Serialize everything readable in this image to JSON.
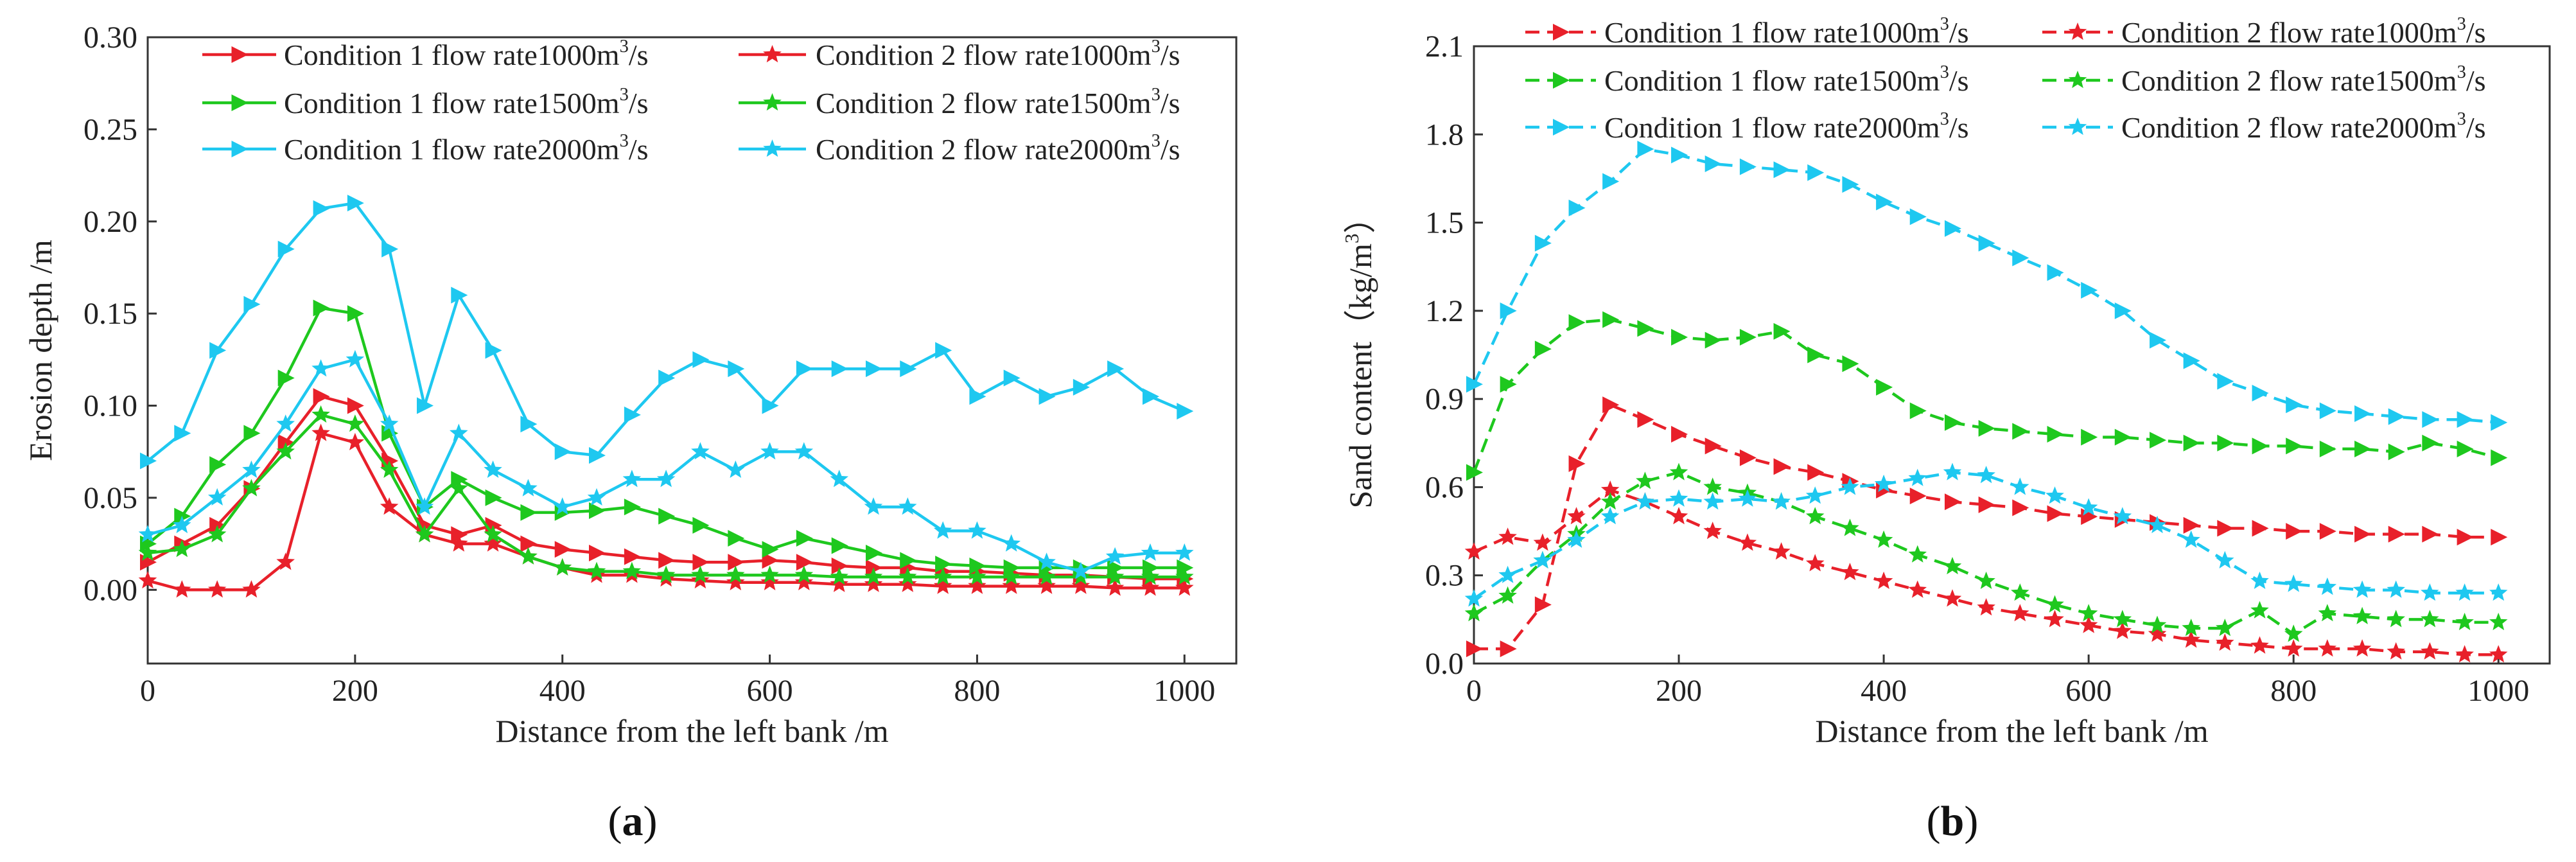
{
  "chart_data": [
    {
      "panel_label": "a",
      "type": "line",
      "xlabel": "Distance from the left bank /m",
      "ylabel": "Erosion depth /m",
      "xlim": [
        0,
        1050
      ],
      "ylim": [
        -0.04,
        0.3
      ],
      "xticks": [
        0,
        200,
        400,
        600,
        800,
        1000
      ],
      "yticks": [
        0.0,
        0.05,
        0.1,
        0.15,
        0.2,
        0.25,
        0.3
      ],
      "ytick_labels": [
        "0.00",
        "0.05",
        "0.10",
        "0.15",
        "0.20",
        "0.25",
        "0.30"
      ],
      "x": [
        0,
        33,
        67,
        100,
        133,
        167,
        200,
        233,
        267,
        300,
        333,
        367,
        400,
        433,
        467,
        500,
        533,
        567,
        600,
        633,
        667,
        700,
        733,
        767,
        800,
        833,
        867,
        900,
        933,
        967,
        1000
      ],
      "series": [
        {
          "name_prefix": "Condition 1 flow rate1000m",
          "name_sup": "3",
          "name_suffix": "/s",
          "color": "#e8202a",
          "marker": "triangle",
          "values": [
            0.015,
            0.025,
            0.035,
            0.055,
            0.08,
            0.105,
            0.1,
            0.07,
            0.035,
            0.03,
            0.035,
            0.025,
            0.022,
            0.02,
            0.018,
            0.016,
            0.015,
            0.015,
            0.016,
            0.015,
            0.013,
            0.012,
            0.012,
            0.01,
            0.01,
            0.009,
            0.008,
            0.008,
            0.007,
            0.006,
            0.006
          ]
        },
        {
          "name_prefix": "Condition 2 flow rate1000m",
          "name_sup": "3",
          "name_suffix": "/s",
          "color": "#e8202a",
          "marker": "star",
          "values": [
            0.005,
            0.0,
            0.0,
            0.0,
            0.015,
            0.085,
            0.08,
            0.045,
            0.03,
            0.025,
            0.025,
            0.018,
            0.012,
            0.008,
            0.008,
            0.006,
            0.005,
            0.004,
            0.004,
            0.004,
            0.003,
            0.003,
            0.003,
            0.002,
            0.002,
            0.002,
            0.002,
            0.002,
            0.001,
            0.001,
            0.001
          ]
        },
        {
          "name_prefix": "Condition 1 flow rate1500m",
          "name_sup": "3",
          "name_suffix": "/s",
          "color": "#1ec81e",
          "marker": "triangle",
          "values": [
            0.025,
            0.04,
            0.068,
            0.085,
            0.115,
            0.153,
            0.15,
            0.085,
            0.045,
            0.06,
            0.05,
            0.042,
            0.042,
            0.043,
            0.045,
            0.04,
            0.035,
            0.028,
            0.022,
            0.028,
            0.024,
            0.02,
            0.016,
            0.014,
            0.013,
            0.012,
            0.012,
            0.012,
            0.012,
            0.012,
            0.012
          ]
        },
        {
          "name_prefix": "Condition 2 flow rate1500m",
          "name_sup": "3",
          "name_suffix": "/s",
          "color": "#1ec81e",
          "marker": "star",
          "values": [
            0.02,
            0.022,
            0.03,
            0.055,
            0.075,
            0.095,
            0.09,
            0.065,
            0.03,
            0.055,
            0.03,
            0.018,
            0.012,
            0.01,
            0.01,
            0.008,
            0.008,
            0.008,
            0.008,
            0.008,
            0.007,
            0.007,
            0.007,
            0.007,
            0.007,
            0.007,
            0.007,
            0.007,
            0.007,
            0.007,
            0.007
          ]
        },
        {
          "name_prefix": "Condition 1 flow rate2000m",
          "name_sup": "3",
          "name_suffix": "/s",
          "color": "#1ec8f0",
          "marker": "triangle",
          "values": [
            0.07,
            0.085,
            0.13,
            0.155,
            0.185,
            0.207,
            0.21,
            0.185,
            0.1,
            0.16,
            0.13,
            0.09,
            0.075,
            0.073,
            0.095,
            0.115,
            0.125,
            0.12,
            0.1,
            0.12,
            0.12,
            0.12,
            0.12,
            0.13,
            0.105,
            0.115,
            0.105,
            0.11,
            0.12,
            0.105,
            0.097
          ]
        },
        {
          "name_prefix": "Condition 2 flow rate2000m",
          "name_sup": "3",
          "name_suffix": "/s",
          "color": "#1ec8f0",
          "marker": "star",
          "values": [
            0.03,
            0.035,
            0.05,
            0.065,
            0.09,
            0.12,
            0.125,
            0.09,
            0.045,
            0.085,
            0.065,
            0.055,
            0.045,
            0.05,
            0.06,
            0.06,
            0.075,
            0.065,
            0.075,
            0.075,
            0.06,
            0.045,
            0.045,
            0.032,
            0.032,
            0.025,
            0.015,
            0.01,
            0.018,
            0.02,
            0.02
          ]
        }
      ]
    },
    {
      "panel_label": "b",
      "type": "line",
      "xlabel": "Distance from the left bank /m",
      "ylabel_prefix": "Sand content（kg/m",
      "ylabel_sup": "3",
      "ylabel_suffix": "）",
      "xlim": [
        0,
        1050
      ],
      "ylim": [
        0,
        2.1
      ],
      "xticks": [
        0,
        200,
        400,
        600,
        800,
        1000
      ],
      "yticks": [
        0.0,
        0.3,
        0.6,
        0.9,
        1.2,
        1.5,
        1.8,
        2.1
      ],
      "ytick_labels": [
        "0.0",
        "0.3",
        "0.6",
        "0.9",
        "1.2",
        "1.5",
        "1.8",
        "2.1"
      ],
      "x": [
        0,
        33,
        67,
        100,
        133,
        167,
        200,
        233,
        267,
        300,
        333,
        367,
        400,
        433,
        467,
        500,
        533,
        567,
        600,
        633,
        667,
        700,
        733,
        767,
        800,
        833,
        867,
        900,
        933,
        967,
        1000
      ],
      "series": [
        {
          "name_prefix": "Condition 1 flow rate1000m",
          "name_sup": "3",
          "name_suffix": "/s",
          "color": "#e8202a",
          "marker": "triangle",
          "values": [
            0.05,
            0.05,
            0.2,
            0.68,
            0.88,
            0.83,
            0.78,
            0.74,
            0.7,
            0.67,
            0.65,
            0.62,
            0.59,
            0.57,
            0.55,
            0.54,
            0.53,
            0.51,
            0.5,
            0.49,
            0.48,
            0.47,
            0.46,
            0.46,
            0.45,
            0.45,
            0.44,
            0.44,
            0.44,
            0.43,
            0.43
          ]
        },
        {
          "name_prefix": "Condition 2 flow rate1000m",
          "name_sup": "3",
          "name_suffix": "/s",
          "color": "#e8202a",
          "marker": "star",
          "values": [
            0.38,
            0.43,
            0.41,
            0.5,
            0.59,
            0.55,
            0.5,
            0.45,
            0.41,
            0.38,
            0.34,
            0.31,
            0.28,
            0.25,
            0.22,
            0.19,
            0.17,
            0.15,
            0.13,
            0.11,
            0.1,
            0.08,
            0.07,
            0.06,
            0.05,
            0.05,
            0.05,
            0.04,
            0.04,
            0.03,
            0.03
          ]
        },
        {
          "name_prefix": "Condition 1 flow rate1500m",
          "name_sup": "3",
          "name_suffix": "/s",
          "color": "#1ec81e",
          "marker": "triangle",
          "values": [
            0.65,
            0.95,
            1.07,
            1.16,
            1.17,
            1.14,
            1.11,
            1.1,
            1.11,
            1.13,
            1.05,
            1.02,
            0.94,
            0.86,
            0.82,
            0.8,
            0.79,
            0.78,
            0.77,
            0.77,
            0.76,
            0.75,
            0.75,
            0.74,
            0.74,
            0.73,
            0.73,
            0.72,
            0.75,
            0.73,
            0.7
          ]
        },
        {
          "name_prefix": "Condition 2 flow rate1500m",
          "name_sup": "3",
          "name_suffix": "/s",
          "color": "#1ec81e",
          "marker": "star",
          "values": [
            0.17,
            0.23,
            0.35,
            0.44,
            0.55,
            0.62,
            0.65,
            0.6,
            0.58,
            0.55,
            0.5,
            0.46,
            0.42,
            0.37,
            0.33,
            0.28,
            0.24,
            0.2,
            0.17,
            0.15,
            0.13,
            0.12,
            0.12,
            0.18,
            0.1,
            0.17,
            0.16,
            0.15,
            0.15,
            0.14,
            0.14
          ]
        },
        {
          "name_prefix": "Condition 1 flow rate2000m",
          "name_sup": "3",
          "name_suffix": "/s",
          "color": "#1ec8f0",
          "marker": "triangle",
          "values": [
            0.95,
            1.2,
            1.43,
            1.55,
            1.64,
            1.75,
            1.73,
            1.7,
            1.69,
            1.68,
            1.67,
            1.63,
            1.57,
            1.52,
            1.48,
            1.43,
            1.38,
            1.33,
            1.27,
            1.2,
            1.1,
            1.03,
            0.96,
            0.92,
            0.88,
            0.86,
            0.85,
            0.84,
            0.83,
            0.83,
            0.82
          ]
        },
        {
          "name_prefix": "Condition 2 flow rate2000m",
          "name_sup": "3",
          "name_suffix": "/s",
          "color": "#1ec8f0",
          "marker": "star",
          "values": [
            0.22,
            0.3,
            0.35,
            0.42,
            0.5,
            0.55,
            0.56,
            0.55,
            0.56,
            0.55,
            0.57,
            0.6,
            0.61,
            0.63,
            0.65,
            0.64,
            0.6,
            0.57,
            0.53,
            0.5,
            0.47,
            0.42,
            0.35,
            0.28,
            0.27,
            0.26,
            0.25,
            0.25,
            0.24,
            0.24,
            0.24
          ]
        }
      ]
    }
  ]
}
